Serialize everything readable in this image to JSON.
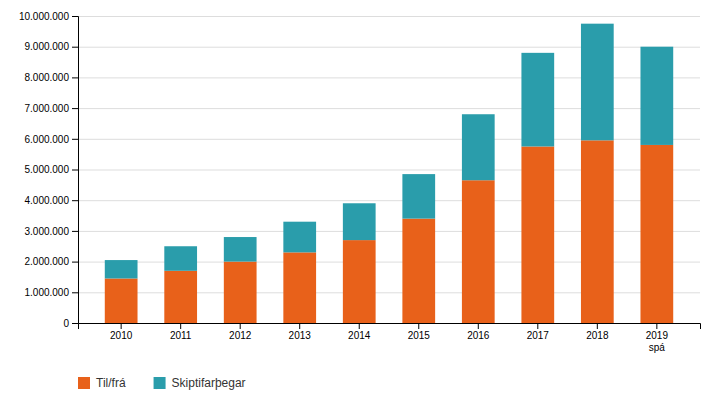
{
  "chart_data": {
    "type": "bar",
    "stacked": true,
    "categories": [
      "2010",
      "2011",
      "2012",
      "2013",
      "2014",
      "2015",
      "2016",
      "2017",
      "2018",
      "2019\nspá"
    ],
    "series": [
      {
        "name": "Til/frá",
        "color": "#E8611A",
        "values": [
          1450000,
          1700000,
          2000000,
          2300000,
          2700000,
          3400000,
          4650000,
          5750000,
          5950000,
          5800000
        ]
      },
      {
        "name": "Skiptifarþegar",
        "color": "#2A9DAB",
        "values": [
          600000,
          800000,
          800000,
          1000000,
          1200000,
          1450000,
          2150000,
          3050000,
          3800000,
          3200000
        ]
      }
    ],
    "ylim": [
      0,
      10000000
    ],
    "yticks": [
      0,
      {
        "value": 1000000,
        "label": "1.000.000"
      },
      {
        "value": 2000000,
        "label": "2.000.000"
      },
      {
        "value": 3000000,
        "label": "3.000.000"
      },
      {
        "value": 4000000,
        "label": "4.000.000"
      },
      {
        "value": 5000000,
        "label": "5.000.000"
      },
      {
        "value": 6000000,
        "label": "6.000.000"
      },
      {
        "value": 7000000,
        "label": "7.000.000"
      },
      {
        "value": 8000000,
        "label": "8.000.000"
      },
      {
        "value": 9000000,
        "label": "9.000.000"
      },
      {
        "value": 10000000,
        "label": "10.000.000"
      }
    ],
    "grid": true,
    "legend": "bottom"
  }
}
